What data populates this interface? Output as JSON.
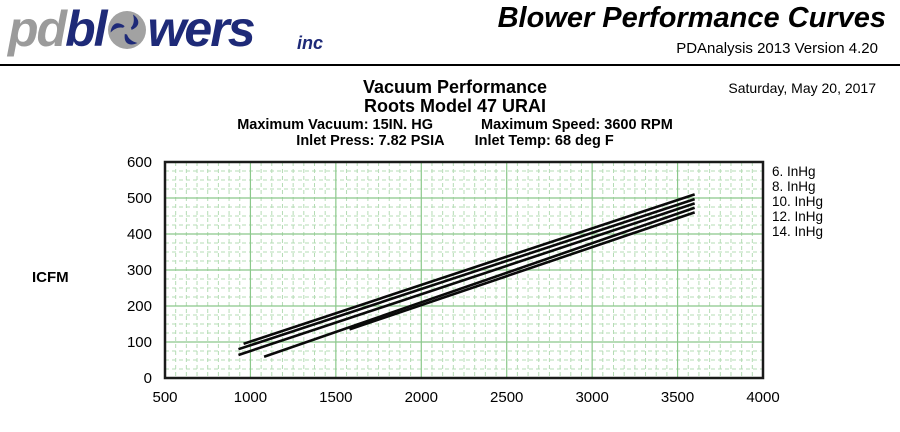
{
  "header": {
    "logo": {
      "pd": "pd",
      "bl": "bl",
      "wers": "wers",
      "inc": "inc",
      "navy_color": "#1e2a78",
      "gray_color": "#9b9b9b",
      "icon": "impeller-icon"
    },
    "title": "Blower Performance Curves",
    "version": "PDAnalysis 2013 Version 4.20"
  },
  "report": {
    "date": "Saturday, May 20, 2017",
    "title1": "Vacuum Performance",
    "title2": "Roots Model 47 URAI",
    "spec_max_vacuum": "Maximum Vacuum: 15IN. HG",
    "spec_max_speed": "Maximum Speed: 3600 RPM",
    "spec_inlet_press": "Inlet Press: 7.82 PSIA",
    "spec_inlet_temp": "Inlet Temp: 68 deg F"
  },
  "chart_data": {
    "type": "line",
    "title": "Vacuum Performance",
    "subtitle": "Roots Model 47 URAI",
    "xlabel": "",
    "ylabel": "ICFM",
    "xlim": [
      500,
      4000
    ],
    "ylim": [
      0,
      600
    ],
    "x_ticks": [
      500,
      1000,
      1500,
      2000,
      2500,
      3000,
      3500,
      4000
    ],
    "y_ticks": [
      0,
      100,
      200,
      300,
      400,
      500,
      600
    ],
    "grid": {
      "on": true,
      "major_color": "#8bc88b",
      "minor_color": "#b5dcb5",
      "x_major_step": 500,
      "y_major_step": 100,
      "x_minor_step": 62.5,
      "y_minor_step": 25
    },
    "line_color": "#0a0a0a",
    "legend_position": "right",
    "series": [
      {
        "name": "6. InHg",
        "x": [
          960,
          3600
        ],
        "y": [
          95,
          510
        ]
      },
      {
        "name": "8. InHg",
        "x": [
          930,
          3600
        ],
        "y": [
          80,
          497
        ]
      },
      {
        "name": "10. InHg",
        "x": [
          930,
          3600
        ],
        "y": [
          64,
          485
        ]
      },
      {
        "name": "12. InHg",
        "x": [
          1080,
          3600
        ],
        "y": [
          59,
          473
        ]
      },
      {
        "name": "14. InHg",
        "x": [
          1580,
          3600
        ],
        "y": [
          135,
          460
        ]
      }
    ]
  }
}
